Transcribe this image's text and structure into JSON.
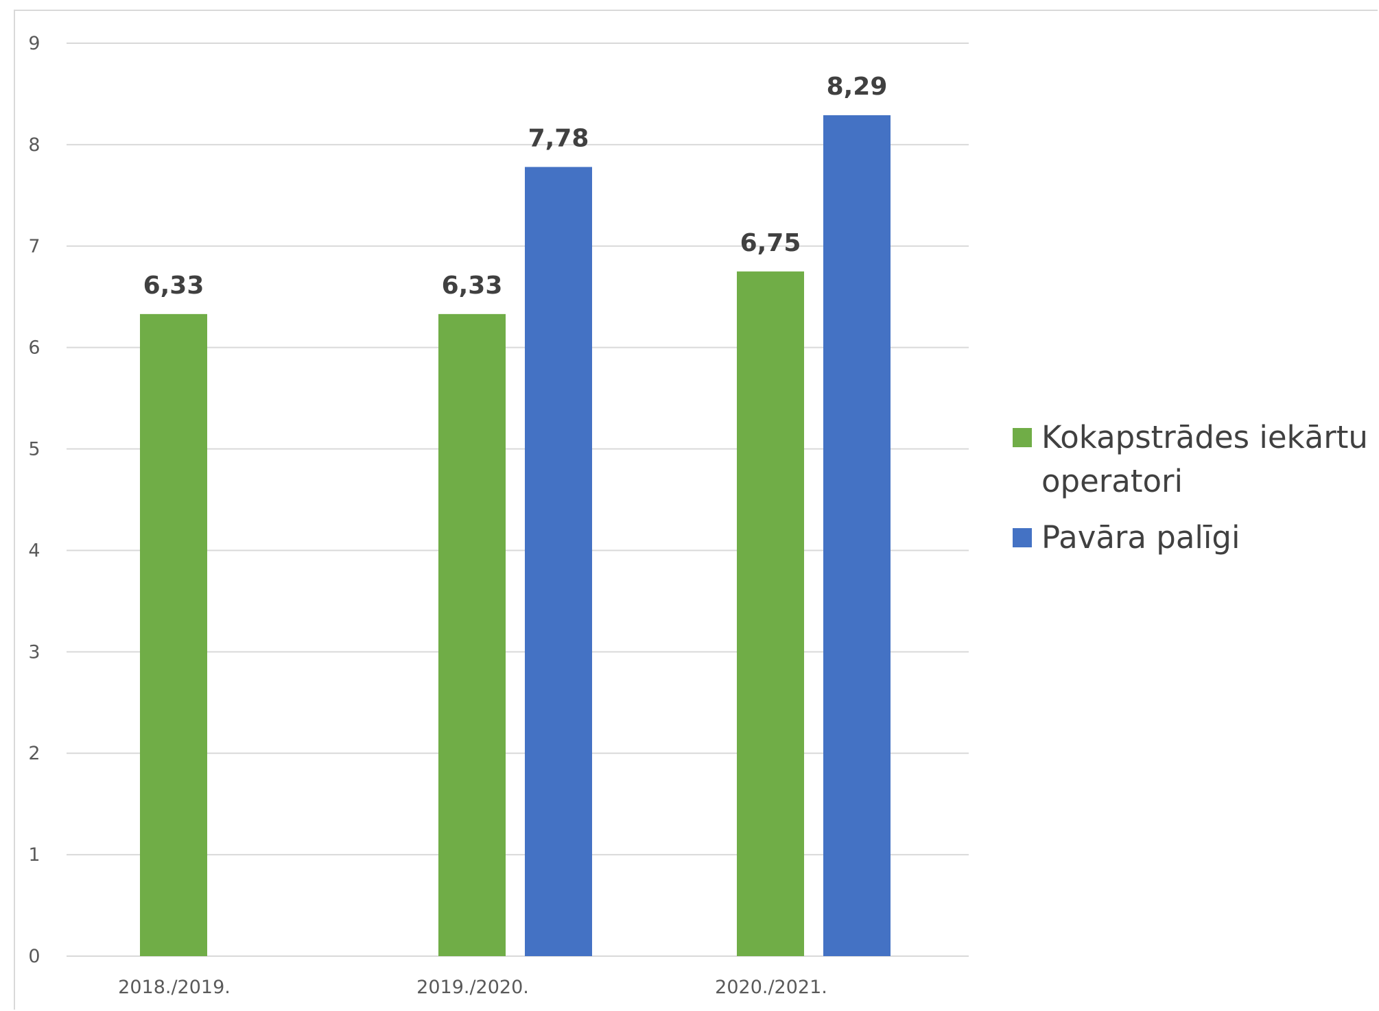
{
  "chart_data": {
    "type": "bar",
    "categories": [
      "2018./2019.",
      "2019./2020.",
      "2020./2021."
    ],
    "series": [
      {
        "name": "Kokapstrādes iekārtu operatori",
        "color": "#70ad47",
        "values": [
          6.33,
          6.33,
          6.75
        ],
        "labels": [
          "6,33",
          "6,33",
          "6,75"
        ]
      },
      {
        "name": "Pavāra palīgi",
        "color": "#4472c4",
        "values": [
          null,
          7.78,
          8.29
        ],
        "labels": [
          "",
          "7,78",
          "8,29"
        ]
      }
    ],
    "ylim": [
      0,
      9
    ],
    "yticks": [
      0,
      1,
      2,
      3,
      4,
      5,
      6,
      7,
      8,
      9
    ],
    "grid": true,
    "legend": "right"
  }
}
